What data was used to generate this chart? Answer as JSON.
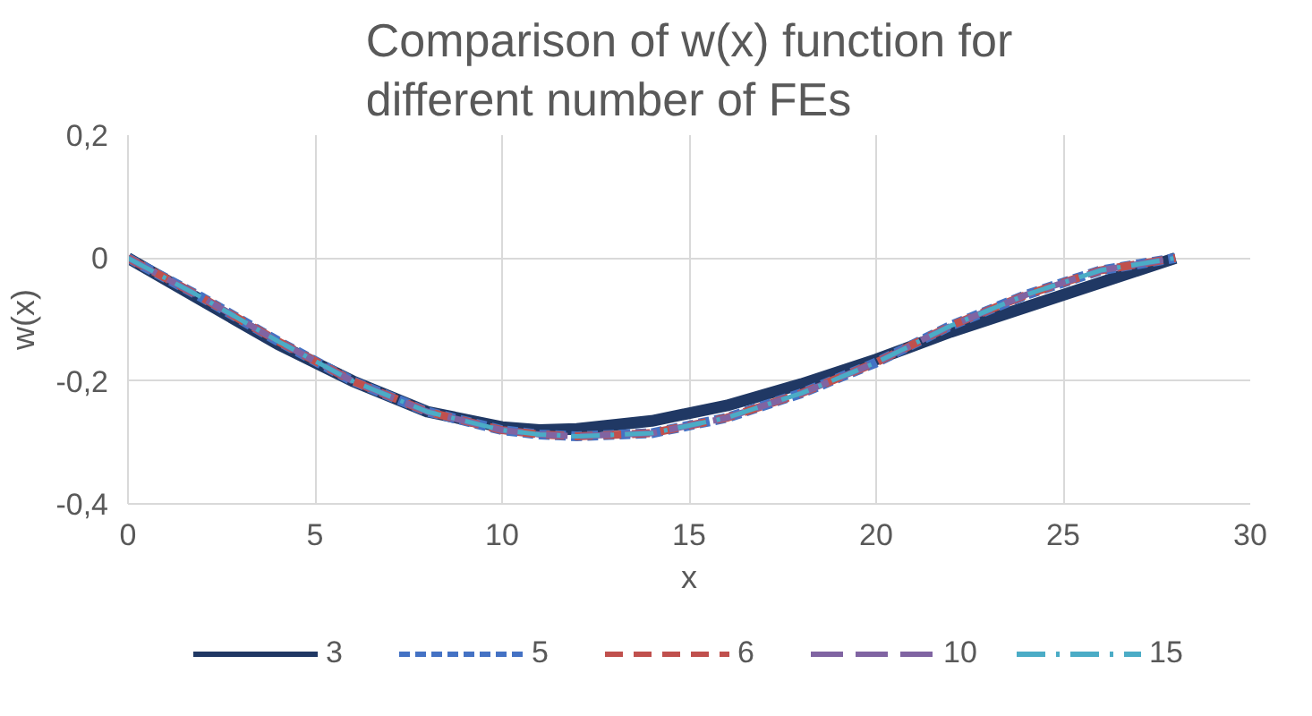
{
  "chart_data": {
    "type": "line",
    "title": "Comparison of w(x) function for different number of FEs",
    "xlabel": "x",
    "ylabel": "w(x)",
    "x": [
      0,
      2,
      4,
      6,
      8,
      10,
      11,
      12,
      14,
      16,
      18,
      20,
      22,
      24,
      26,
      28
    ],
    "series": [
      {
        "name": "3",
        "color": "#203864",
        "line_style": "solid",
        "values": [
          0,
          -0.07,
          -0.14,
          -0.2,
          -0.25,
          -0.275,
          -0.28,
          -0.278,
          -0.265,
          -0.24,
          -0.205,
          -0.165,
          -0.12,
          -0.08,
          -0.04,
          0
        ]
      },
      {
        "name": "5",
        "color": "#4472c4",
        "line_style": "dotted",
        "values": [
          0,
          -0.065,
          -0.135,
          -0.2,
          -0.25,
          -0.28,
          -0.287,
          -0.29,
          -0.285,
          -0.26,
          -0.22,
          -0.17,
          -0.11,
          -0.06,
          -0.02,
          0
        ]
      },
      {
        "name": "6",
        "color": "#c0504d",
        "line_style": "dashed",
        "values": [
          0,
          -0.065,
          -0.135,
          -0.2,
          -0.25,
          -0.28,
          -0.287,
          -0.29,
          -0.285,
          -0.26,
          -0.22,
          -0.17,
          -0.11,
          -0.06,
          -0.02,
          0
        ]
      },
      {
        "name": "10",
        "color": "#8064a2",
        "line_style": "dashed",
        "values": [
          0,
          -0.065,
          -0.135,
          -0.2,
          -0.25,
          -0.28,
          -0.287,
          -0.29,
          -0.285,
          -0.26,
          -0.22,
          -0.17,
          -0.11,
          -0.06,
          -0.02,
          0
        ]
      },
      {
        "name": "15",
        "color": "#4bacc6",
        "line_style": "dashdot",
        "values": [
          0,
          -0.065,
          -0.135,
          -0.2,
          -0.25,
          -0.28,
          -0.287,
          -0.29,
          -0.285,
          -0.26,
          -0.22,
          -0.17,
          -0.11,
          -0.06,
          -0.02,
          0
        ]
      }
    ],
    "xlim": [
      0,
      30
    ],
    "xticks": [
      0,
      5,
      10,
      15,
      20,
      25,
      30
    ],
    "ylim": [
      -0.4,
      0.2
    ],
    "yticks": [
      {
        "value": -0.4,
        "label": "-0,4"
      },
      {
        "value": -0.2,
        "label": "-0,2"
      },
      0,
      {
        "value": 0.2,
        "label": "0,2"
      }
    ],
    "grid": true,
    "legend": "bottom"
  }
}
